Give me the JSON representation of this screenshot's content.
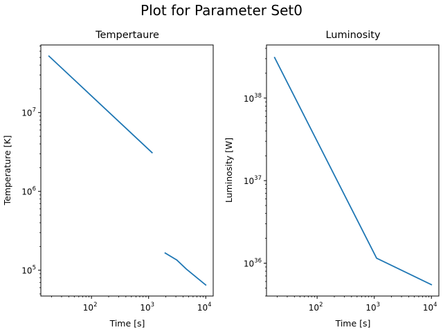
{
  "figure": {
    "title": "Plot for Parameter Set0"
  },
  "chart_data": [
    {
      "type": "line",
      "title": "Tempertaure",
      "xlabel": "Time [s]",
      "ylabel": "Temperature [K]",
      "xscale": "log",
      "yscale": "log",
      "xlim": [
        13,
        13500
      ],
      "ylim": [
        47000,
        72000000
      ],
      "xticks": [
        {
          "base": "10",
          "exp": "2",
          "value": 100
        },
        {
          "base": "10",
          "exp": "3",
          "value": 1000
        },
        {
          "base": "10",
          "exp": "4",
          "value": 10000
        }
      ],
      "yticks": [
        {
          "base": "10",
          "exp": "5",
          "value": 100000
        },
        {
          "base": "10",
          "exp": "6",
          "value": 1000000
        },
        {
          "base": "10",
          "exp": "7",
          "value": 10000000
        }
      ],
      "grid": false,
      "series": [
        {
          "color": "#1f77b4",
          "segments": [
            [
              [
                18,
                52000000
              ],
              [
                1150,
                3100000
              ]
            ],
            [
              [
                1950,
                165000
              ],
              [
                3100,
                135000
              ],
              [
                4600,
                103000
              ],
              [
                10000,
                65000
              ]
            ]
          ]
        }
      ]
    },
    {
      "type": "line",
      "title": "Luminosity",
      "xlabel": "Time [s]",
      "ylabel": "Luminosity [W]",
      "xscale": "log",
      "yscale": "log",
      "xlim": [
        13,
        13500
      ],
      "ylim": [
        4e+35,
        4.4e+38
      ],
      "xticks": [
        {
          "base": "10",
          "exp": "2",
          "value": 100
        },
        {
          "base": "10",
          "exp": "3",
          "value": 1000
        },
        {
          "base": "10",
          "exp": "4",
          "value": 10000
        }
      ],
      "yticks": [
        {
          "base": "10",
          "exp": "36",
          "value": 1e+36
        },
        {
          "base": "10",
          "exp": "37",
          "value": 1e+37
        },
        {
          "base": "10",
          "exp": "38",
          "value": 1e+38
        }
      ],
      "grid": false,
      "series": [
        {
          "color": "#1f77b4",
          "segments": [
            [
              [
                18,
                3.1e+38
              ],
              [
                1100,
                1.15e+36
              ],
              [
                10000,
                5.5e+35
              ]
            ]
          ]
        }
      ]
    }
  ]
}
